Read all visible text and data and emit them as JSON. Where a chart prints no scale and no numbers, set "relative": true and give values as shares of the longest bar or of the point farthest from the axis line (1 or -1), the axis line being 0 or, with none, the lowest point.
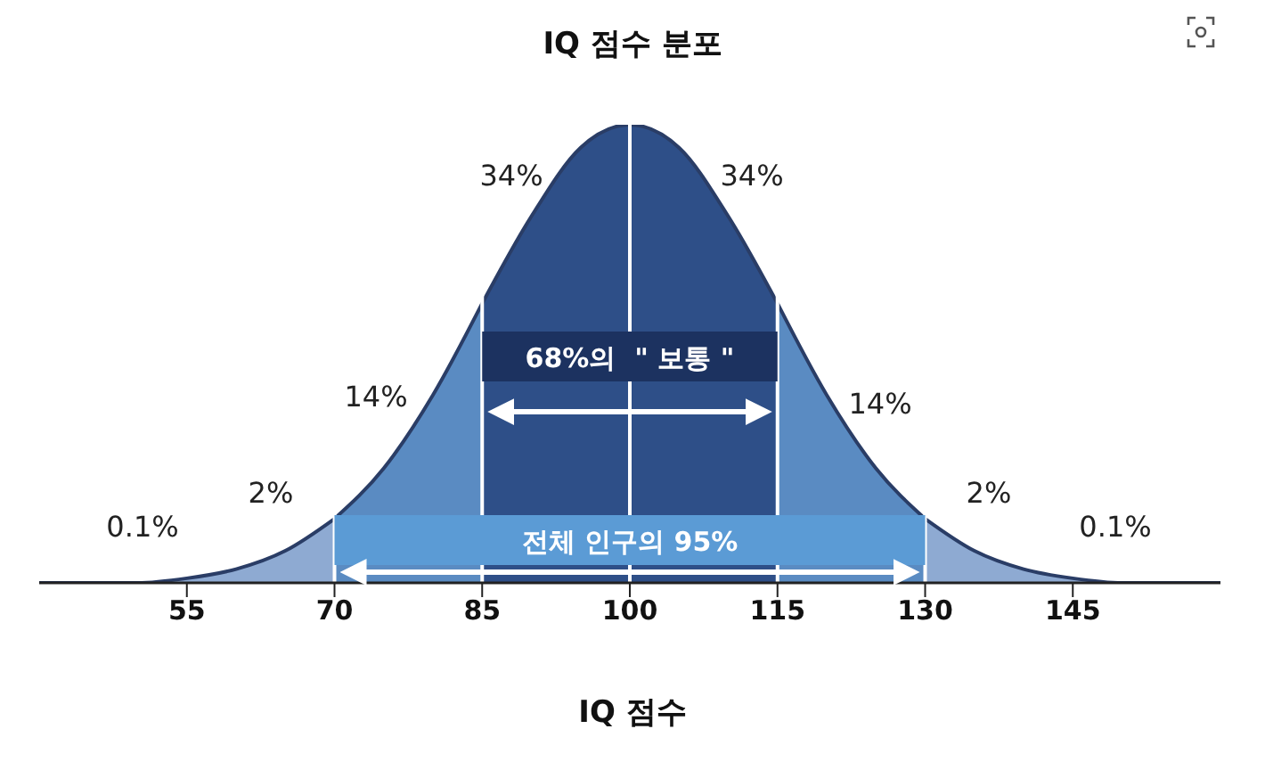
{
  "chart_data": {
    "type": "area",
    "title": "IQ 점수 분포",
    "xlabel": "IQ 점수",
    "relative": true,
    "xlim": [
      40,
      160
    ],
    "xticks": [
      55,
      70,
      85,
      100,
      115,
      130,
      145
    ],
    "series": [
      {
        "x": [
          40,
          45,
          50,
          55,
          60,
          65,
          70
        ],
        "values": [
          0,
          0,
          0,
          0.01,
          0.03,
          0.07,
          0.14
        ],
        "color": "#8eaad2"
      },
      {
        "x": [
          70,
          75,
          80,
          85
        ],
        "values": [
          0.14,
          0.25,
          0.41,
          0.61
        ],
        "color": "#5a8bc2"
      },
      {
        "x": [
          85,
          90,
          95,
          100,
          105,
          110,
          115
        ],
        "values": [
          0.61,
          0.8,
          0.95,
          1,
          0.95,
          0.8,
          0.61
        ],
        "color": "#2e4f88"
      },
      {
        "x": [
          115,
          120,
          125,
          130
        ],
        "values": [
          0.61,
          0.41,
          0.25,
          0.14
        ],
        "color": "#5a8bc2"
      },
      {
        "x": [
          130,
          135,
          140,
          145,
          150,
          155,
          160
        ],
        "values": [
          0.14,
          0.07,
          0.03,
          0.01,
          0,
          0,
          0
        ],
        "color": "#8eaad2"
      }
    ],
    "ref_lines": [
      {
        "axis": "x",
        "value": 70,
        "color": "#ffffff"
      },
      {
        "axis": "x",
        "value": 85,
        "color": "#ffffff"
      },
      {
        "axis": "x",
        "value": 100,
        "color": "#ffffff"
      },
      {
        "axis": "x",
        "value": 115,
        "color": "#ffffff"
      },
      {
        "axis": "x",
        "value": 130,
        "color": "#ffffff"
      }
    ],
    "bands": [
      {
        "axis": "x",
        "from": 85,
        "to": 115,
        "label": "68%의  \" 보통 \"",
        "color": "#1c3260"
      },
      {
        "axis": "x",
        "from": 70,
        "to": 130,
        "label": "전체 인구의 95%",
        "color": "#5b9bd5"
      }
    ],
    "annotations": [
      "34%",
      "34%",
      "14%",
      "14%",
      "2%",
      "2%",
      "0.1%",
      "0.1%"
    ]
  }
}
